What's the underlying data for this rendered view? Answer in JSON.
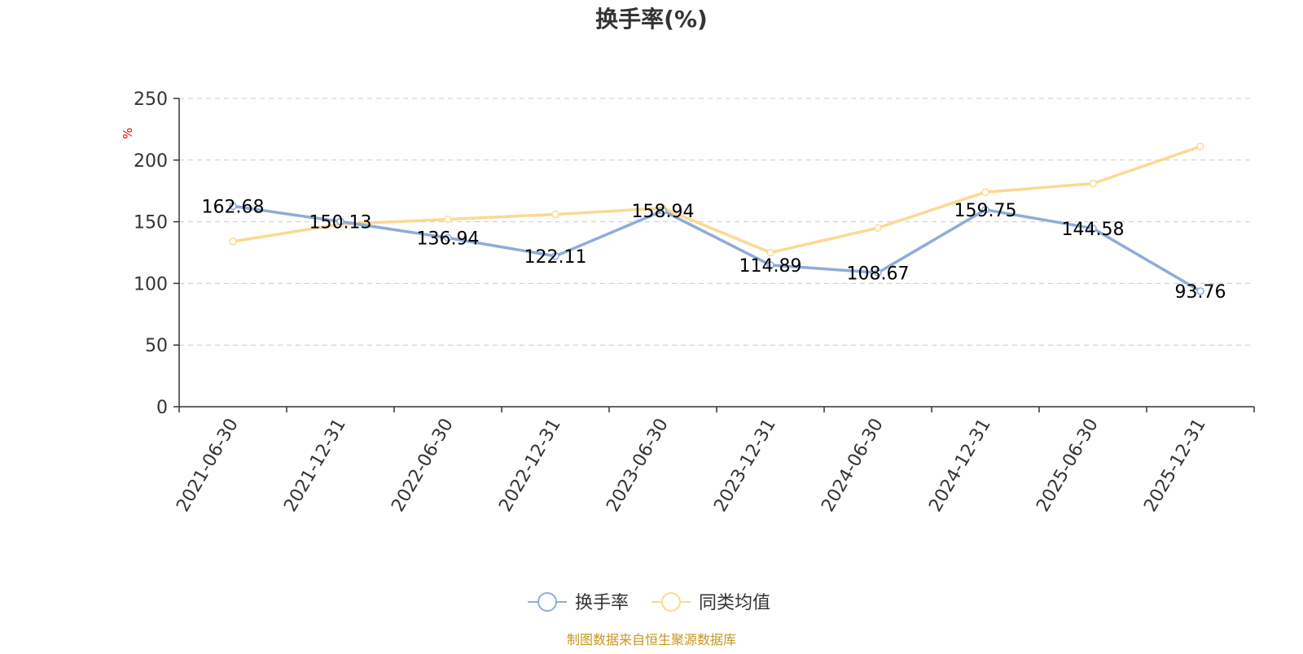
{
  "chart_data": {
    "type": "line",
    "title": "换手率(%)",
    "ylabel": "%",
    "xlabel": "",
    "ylim": [
      0,
      250
    ],
    "yticks": [
      0,
      50,
      100,
      150,
      200,
      250
    ],
    "grid": true,
    "legend_position": "bottom-center",
    "categories": [
      "2021-06-30",
      "2021-12-31",
      "2022-06-30",
      "2022-12-31",
      "2023-06-30",
      "2023-12-31",
      "2024-06-30",
      "2024-12-31",
      "2025-06-30",
      "2025-12-31"
    ],
    "series": [
      {
        "name": "换手率",
        "values": [
          162.68,
          150.13,
          136.94,
          122.11,
          158.94,
          114.89,
          108.67,
          159.75,
          144.58,
          93.76
        ],
        "labels": [
          "162.68",
          "150.13",
          "136.94",
          "122.11",
          "158.94",
          "114.89",
          "108.67",
          "159.75",
          "144.58",
          "93.76"
        ],
        "color": "#8eacd9"
      },
      {
        "name": "同类均值",
        "values": [
          134,
          148,
          152,
          156,
          161,
          125,
          145,
          174,
          181,
          211
        ],
        "color": "#fbd992"
      }
    ],
    "source_note": "制图数据来自恒生聚源数据库"
  },
  "colors": {
    "title": "#333333",
    "axis": "#333333",
    "grid": "#cccccc",
    "ylabel": "#ff0000",
    "source": "#c8961e",
    "data_label": "#000000"
  }
}
